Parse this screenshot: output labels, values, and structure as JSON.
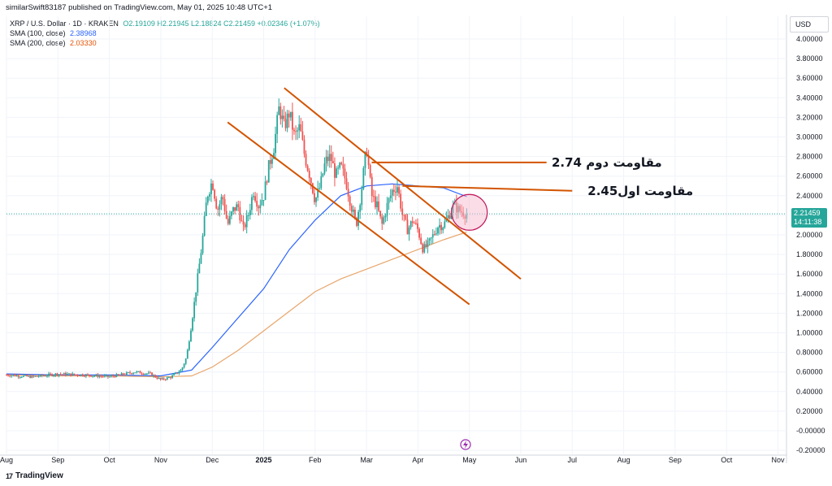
{
  "header": {
    "published_by": "similarSwift83187 published on TradingView.com, May 01, 2025 10:48 UTC+1"
  },
  "legend": {
    "symbol": "XRP / U.S. Dollar · 1D · KRAKEN",
    "ohlc": "O2.19109 H2.21945 L2.18824 C2.21459 +0.02346 (+1.07%)",
    "sma100_label": "SMA (100, close)",
    "sma100_value": "2.38968",
    "sma200_label": "SMA (200, close)",
    "sma200_value": "2.03330"
  },
  "axis": {
    "currency": "USD",
    "last_price": "2.21459",
    "countdown": "14:11:38"
  },
  "brand": {
    "name": "TradingView",
    "logo_text": "17"
  },
  "colors": {
    "up": "#26a69a",
    "down": "#ef5350",
    "sma100": "#2962ff",
    "sma200": "#e8a66c",
    "trendline": "#d35400",
    "grid": "#f0f3fa",
    "circle": "#f8bbd0"
  },
  "chart_data": {
    "type": "candlestick",
    "title": "XRP / U.S. Dollar · 1D · KRAKEN",
    "xlabel": "",
    "ylabel": "USD",
    "ylim": [
      -0.2,
      4.1
    ],
    "y_ticks": [
      -0.2,
      0.0,
      0.2,
      0.4,
      0.6,
      0.8,
      1.0,
      1.2,
      1.4,
      1.6,
      1.8,
      2.0,
      2.2,
      2.4,
      2.6,
      2.8,
      3.0,
      3.2,
      3.4,
      3.6,
      3.8,
      4.0
    ],
    "y_tick_labels": [
      "-0.20000",
      "-0.00000",
      "0.20000",
      "0.40000",
      "0.60000",
      "0.80000",
      "1.00000",
      "1.20000",
      "1.40000",
      "1.60000",
      "1.80000",
      "2.00000",
      "2.20000",
      "2.40000",
      "2.60000",
      "2.80000",
      "3.00000",
      "3.20000",
      "3.40000",
      "3.60000",
      "3.80000",
      "4.00000"
    ],
    "x_tick_labels": [
      "Aug",
      "Sep",
      "Oct",
      "Nov",
      "Dec",
      "2025",
      "Feb",
      "Mar",
      "Apr",
      "May",
      "Jun",
      "Jul",
      "Aug",
      "Sep",
      "Oct",
      "Nov"
    ],
    "x_tick_months_from_aug2024": [
      0,
      1,
      2,
      3,
      4,
      5,
      6,
      7,
      8,
      9,
      10,
      11,
      12,
      13,
      14,
      15
    ],
    "price_path": [
      [
        0.0,
        0.57
      ],
      [
        0.5,
        0.55
      ],
      [
        1.0,
        0.58
      ],
      [
        1.5,
        0.57
      ],
      [
        2.0,
        0.55
      ],
      [
        2.5,
        0.6
      ],
      [
        2.8,
        0.58
      ],
      [
        3.0,
        0.52
      ],
      [
        3.2,
        0.55
      ],
      [
        3.4,
        0.62
      ],
      [
        3.5,
        0.75
      ],
      [
        3.6,
        1.1
      ],
      [
        3.7,
        1.5
      ],
      [
        3.8,
        1.9
      ],
      [
        3.9,
        2.4
      ],
      [
        4.0,
        2.55
      ],
      [
        4.1,
        2.25
      ],
      [
        4.2,
        2.4
      ],
      [
        4.3,
        2.1
      ],
      [
        4.4,
        2.25
      ],
      [
        4.5,
        2.3
      ],
      [
        4.6,
        2.05
      ],
      [
        4.7,
        2.2
      ],
      [
        4.8,
        2.45
      ],
      [
        4.9,
        2.3
      ],
      [
        5.0,
        2.4
      ],
      [
        5.1,
        2.7
      ],
      [
        5.2,
        2.9
      ],
      [
        5.3,
        3.3
      ],
      [
        5.4,
        3.1
      ],
      [
        5.5,
        3.25
      ],
      [
        5.6,
        3.0
      ],
      [
        5.7,
        3.1
      ],
      [
        5.8,
        2.8
      ],
      [
        5.9,
        2.6
      ],
      [
        6.0,
        2.35
      ],
      [
        6.1,
        2.5
      ],
      [
        6.2,
        2.75
      ],
      [
        6.3,
        2.8
      ],
      [
        6.4,
        2.6
      ],
      [
        6.5,
        2.7
      ],
      [
        6.6,
        2.55
      ],
      [
        6.7,
        2.3
      ],
      [
        6.8,
        2.1
      ],
      [
        6.9,
        2.45
      ],
      [
        7.0,
        2.9
      ],
      [
        7.1,
        2.4
      ],
      [
        7.2,
        2.3
      ],
      [
        7.3,
        2.1
      ],
      [
        7.4,
        2.3
      ],
      [
        7.5,
        2.45
      ],
      [
        7.6,
        2.5
      ],
      [
        7.7,
        2.2
      ],
      [
        7.8,
        2.05
      ],
      [
        7.9,
        2.15
      ],
      [
        8.0,
        2.05
      ],
      [
        8.1,
        1.85
      ],
      [
        8.2,
        1.9
      ],
      [
        8.3,
        2.0
      ],
      [
        8.4,
        2.1
      ],
      [
        8.5,
        2.1
      ],
      [
        8.6,
        2.2
      ],
      [
        8.7,
        2.3
      ],
      [
        8.8,
        2.25
      ],
      [
        8.95,
        2.21
      ]
    ],
    "series": [
      {
        "name": "SMA (100, close)",
        "last_value": 2.38968,
        "points": [
          [
            0.0,
            0.58
          ],
          [
            1.0,
            0.57
          ],
          [
            2.0,
            0.57
          ],
          [
            3.0,
            0.56
          ],
          [
            3.6,
            0.62
          ],
          [
            4.0,
            0.85
          ],
          [
            4.5,
            1.15
          ],
          [
            5.0,
            1.45
          ],
          [
            5.5,
            1.85
          ],
          [
            6.0,
            2.15
          ],
          [
            6.5,
            2.4
          ],
          [
            7.0,
            2.5
          ],
          [
            7.5,
            2.52
          ],
          [
            8.0,
            2.5
          ],
          [
            8.5,
            2.48
          ],
          [
            8.95,
            2.39
          ]
        ]
      },
      {
        "name": "SMA (200, close)",
        "last_value": 2.0333,
        "points": [
          [
            0.0,
            0.57
          ],
          [
            1.0,
            0.56
          ],
          [
            2.0,
            0.56
          ],
          [
            3.0,
            0.55
          ],
          [
            3.6,
            0.56
          ],
          [
            4.0,
            0.65
          ],
          [
            4.5,
            0.82
          ],
          [
            5.0,
            1.02
          ],
          [
            5.5,
            1.22
          ],
          [
            6.0,
            1.42
          ],
          [
            6.5,
            1.55
          ],
          [
            7.0,
            1.65
          ],
          [
            7.5,
            1.75
          ],
          [
            8.0,
            1.85
          ],
          [
            8.5,
            1.95
          ],
          [
            8.95,
            2.03
          ]
        ]
      }
    ],
    "trendlines": [
      {
        "name": "channel-upper",
        "from": [
          5.4,
          3.5
        ],
        "to": [
          10.0,
          1.55
        ]
      },
      {
        "name": "channel-lower",
        "from": [
          4.3,
          3.15
        ],
        "to": [
          9.0,
          1.29
        ]
      },
      {
        "name": "resistance-2",
        "from": [
          7.1,
          2.74
        ],
        "to": [
          10.5,
          2.74
        ]
      },
      {
        "name": "resistance-1",
        "from": [
          7.7,
          2.5
        ],
        "to": [
          11.0,
          2.45
        ]
      }
    ],
    "annotations": [
      {
        "text": "مقاومت دوم 2.74",
        "at": [
          10.6,
          2.74
        ]
      },
      {
        "text": "مقاومت اول2.45",
        "at": [
          11.3,
          2.45
        ]
      }
    ],
    "highlight_circle": {
      "center": [
        9.0,
        2.23
      ]
    },
    "last_price": 2.21459
  }
}
